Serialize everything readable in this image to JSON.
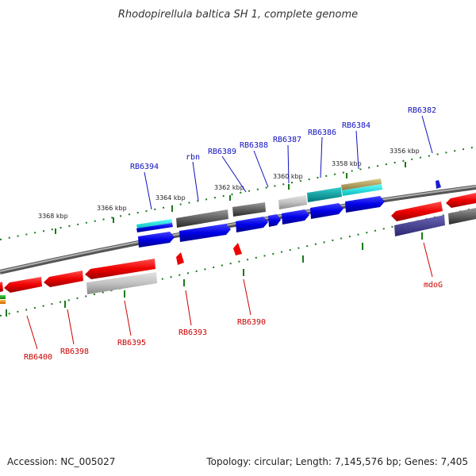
{
  "title": "Rhodopirellula baltica SH 1, complete genome",
  "footer": {
    "accession": "Accession: NC_005027",
    "topology": "Topology: circular; Length: 7,145,576 bp; Genes: 7,405"
  },
  "scale_labels": [
    "3368 kbp",
    "3366 kbp",
    "3364 kbp",
    "3362 kbp",
    "3360 kbp",
    "3358 kbp",
    "3356 kbp"
  ],
  "genes_forward": [
    "RB6394",
    "rbn",
    "RB6389",
    "RB6388",
    "RB6387",
    "RB6386",
    "RB6384",
    "RB6382"
  ],
  "genes_reverse": [
    "RB6400",
    "RB6398",
    "RB6395",
    "RB6393",
    "RB6390",
    "mdoG"
  ],
  "colors": {
    "forward_label": "#1010c0",
    "reverse_label": "#cc0000",
    "backbone": "#777777",
    "tick": "#1a7a1a"
  }
}
